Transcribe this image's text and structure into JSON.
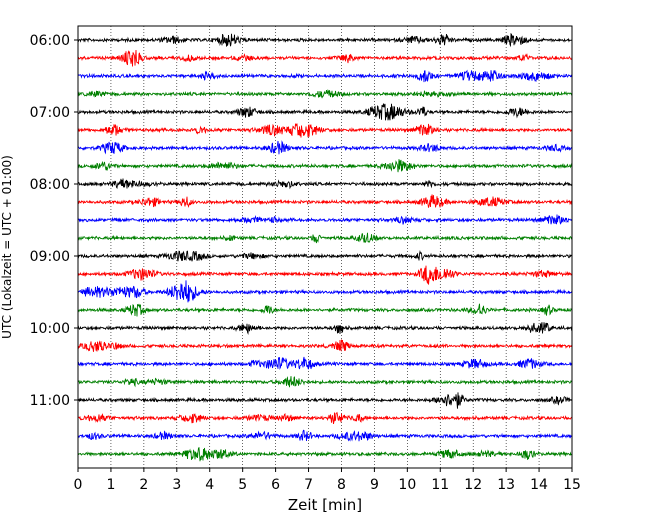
{
  "chart_data": {
    "type": "line",
    "title": "",
    "xlabel": "Zeit  [min]",
    "ylabel": "UTC (Lokalzeit = UTC + 01:00)",
    "xlim": [
      0,
      15
    ],
    "x_ticks": [
      0,
      1,
      2,
      3,
      4,
      5,
      6,
      7,
      8,
      9,
      10,
      11,
      12,
      13,
      14,
      15
    ],
    "y_tick_labels": [
      "06:00",
      "07:00",
      "08:00",
      "09:00",
      "10:00",
      "11:00"
    ],
    "y_range_hours": [
      "06:00",
      "11:45"
    ],
    "trace_interval_min": 15,
    "grid": "vertical dotted lines at each minute",
    "color_cycle": [
      "#000000",
      "#ff0000",
      "#0000ff",
      "#008000"
    ],
    "series": [
      {
        "start": "06:00",
        "color": "#000000"
      },
      {
        "start": "06:15",
        "color": "#ff0000"
      },
      {
        "start": "06:30",
        "color": "#0000ff"
      },
      {
        "start": "06:45",
        "color": "#008000"
      },
      {
        "start": "07:00",
        "color": "#000000"
      },
      {
        "start": "07:15",
        "color": "#ff0000"
      },
      {
        "start": "07:30",
        "color": "#0000ff"
      },
      {
        "start": "07:45",
        "color": "#008000"
      },
      {
        "start": "08:00",
        "color": "#000000"
      },
      {
        "start": "08:15",
        "color": "#ff0000"
      },
      {
        "start": "08:30",
        "color": "#0000ff"
      },
      {
        "start": "08:45",
        "color": "#008000"
      },
      {
        "start": "09:00",
        "color": "#000000"
      },
      {
        "start": "09:15",
        "color": "#ff0000"
      },
      {
        "start": "09:30",
        "color": "#0000ff"
      },
      {
        "start": "09:45",
        "color": "#008000"
      },
      {
        "start": "10:00",
        "color": "#000000"
      },
      {
        "start": "10:15",
        "color": "#ff0000"
      },
      {
        "start": "10:30",
        "color": "#0000ff"
      },
      {
        "start": "10:45",
        "color": "#008000"
      },
      {
        "start": "11:00",
        "color": "#000000"
      },
      {
        "start": "11:15",
        "color": "#ff0000"
      },
      {
        "start": "11:30",
        "color": "#0000ff"
      },
      {
        "start": "11:45",
        "color": "#008000"
      }
    ]
  }
}
